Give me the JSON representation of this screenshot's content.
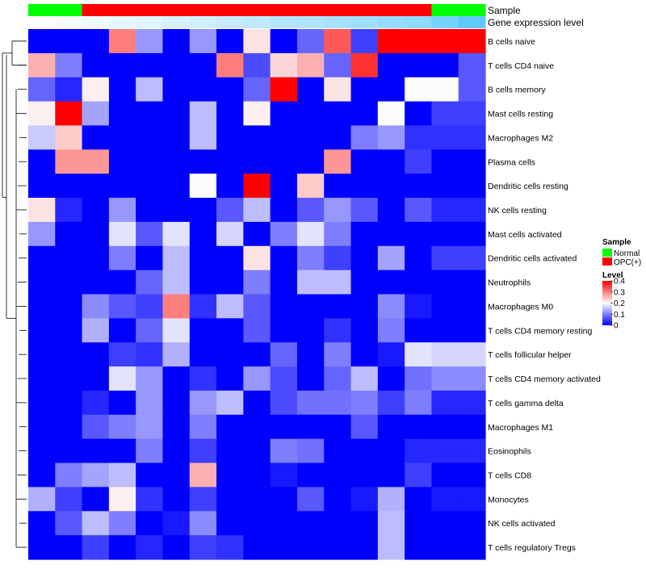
{
  "chart_data": {
    "type": "heatmap",
    "annotation_tracks": [
      "Sample",
      "Gene expression level"
    ],
    "sample_annotation": [
      "Normal",
      "Normal",
      "OPC(+)",
      "OPC(+)",
      "OPC(+)",
      "OPC(+)",
      "OPC(+)",
      "OPC(+)",
      "OPC(+)",
      "OPC(+)",
      "OPC(+)",
      "OPC(+)",
      "OPC(+)",
      "OPC(+)",
      "OPC(+)",
      "Normal",
      "Normal"
    ],
    "expression_annotation": [
      0.0,
      0.05,
      0.1,
      0.15,
      0.2,
      0.25,
      0.3,
      0.35,
      0.4,
      0.45,
      0.5,
      0.55,
      0.6,
      0.65,
      0.7,
      0.85,
      1.0
    ],
    "rows": [
      "B cells naive",
      "T cells CD4 naive",
      "B cells memory",
      "Mast cells resting",
      "Macrophages M2",
      "Plasma cells",
      "Dendritic cells resting",
      "NK cells resting",
      "Mast cells activated",
      "Dendritic cells activated",
      "Neutrophils",
      "Macrophages M0",
      "T cells CD4 memory resting",
      "T cells follicular helper",
      "T cells CD4 memory activated",
      "T cells gamma delta",
      "Macrophages M1",
      "Eosinophils",
      "T cells CD8",
      "Monocytes",
      "NK cells activated",
      "T cells regulatory  Tregs"
    ],
    "values": [
      [
        0,
        0,
        0,
        0.3,
        0.12,
        0,
        0.12,
        0,
        0.22,
        0,
        0.08,
        0.33,
        0.05,
        0.4,
        0.4,
        0.4,
        0.4
      ],
      [
        0.26,
        0.1,
        0,
        0,
        0,
        0,
        0,
        0.3,
        0.06,
        0.23,
        0.26,
        0.08,
        0.36,
        0,
        0,
        0,
        0.07
      ],
      [
        0.08,
        0.03,
        0.21,
        0,
        0.15,
        0,
        0,
        0,
        0.08,
        0.4,
        0,
        0.22,
        0,
        0,
        0.2,
        0.2,
        0.07
      ],
      [
        0.21,
        0.4,
        0.13,
        0,
        0,
        0,
        0.15,
        0,
        0.21,
        0,
        0,
        0,
        0,
        0.2,
        0,
        0.05,
        0.05
      ],
      [
        0.16,
        0.24,
        0,
        0,
        0,
        0,
        0.15,
        0,
        0,
        0,
        0,
        0,
        0.1,
        0.12,
        0.04,
        0.04,
        0.04
      ],
      [
        0,
        0.28,
        0.28,
        0,
        0,
        0,
        0,
        0,
        0,
        0,
        0,
        0.28,
        0,
        0,
        0.05,
        0,
        0
      ],
      [
        0,
        0,
        0,
        0,
        0,
        0,
        0.2,
        0,
        0.4,
        0,
        0.24,
        0,
        0,
        0,
        0,
        0,
        0
      ],
      [
        0.22,
        0.03,
        0,
        0.12,
        0,
        0,
        0,
        0.07,
        0.15,
        0,
        0.07,
        0.12,
        0.07,
        0,
        0.07,
        0.03,
        0.03
      ],
      [
        0.12,
        0,
        0,
        0.18,
        0.07,
        0.18,
        0,
        0.17,
        0,
        0.1,
        0.18,
        0.1,
        0,
        0,
        0,
        0,
        0
      ],
      [
        0,
        0,
        0,
        0.1,
        0,
        0.15,
        0,
        0,
        0.22,
        0,
        0.1,
        0.05,
        0,
        0.13,
        0,
        0.05,
        0.05
      ],
      [
        0,
        0,
        0,
        0,
        0.08,
        0.15,
        0,
        0,
        0.1,
        0,
        0.15,
        0.15,
        0,
        0,
        0,
        0,
        0
      ],
      [
        0,
        0,
        0.11,
        0.07,
        0.05,
        0.3,
        0.04,
        0.15,
        0.07,
        0,
        0,
        0,
        0,
        0.11,
        0.02,
        0,
        0
      ],
      [
        0,
        0,
        0.14,
        0,
        0.08,
        0.18,
        0,
        0,
        0.07,
        0,
        0,
        0.04,
        0,
        0.1,
        0,
        0,
        0
      ],
      [
        0,
        0,
        0,
        0.05,
        0.04,
        0.14,
        0,
        0,
        0,
        0.08,
        0,
        0.1,
        0,
        0.02,
        0.18,
        0.17,
        0.17
      ],
      [
        0,
        0,
        0,
        0.18,
        0.12,
        0,
        0.04,
        0,
        0.12,
        0.06,
        0,
        0.08,
        0.15,
        0,
        0.09,
        0.11,
        0.11
      ],
      [
        0,
        0,
        0.03,
        0,
        0.12,
        0,
        0.12,
        0.15,
        0,
        0.06,
        0.09,
        0.09,
        0.1,
        0.05,
        0.1,
        0.03,
        0.03
      ],
      [
        0,
        0,
        0.07,
        0.1,
        0.12,
        0,
        0.1,
        0,
        0,
        0,
        0,
        0,
        0.07,
        0,
        0,
        0,
        0
      ],
      [
        0,
        0,
        0,
        0,
        0.1,
        0,
        0.05,
        0,
        0,
        0.1,
        0.09,
        0,
        0,
        0,
        0.03,
        0.03,
        0.03
      ],
      [
        0,
        0.1,
        0.13,
        0.15,
        0,
        0,
        0.26,
        0,
        0,
        0.02,
        0,
        0,
        0,
        0,
        0.05,
        0,
        0
      ],
      [
        0.14,
        0.05,
        0,
        0.21,
        0.04,
        0,
        0.05,
        0,
        0,
        0,
        0.07,
        0,
        0.02,
        0.14,
        0,
        0.02,
        0.02
      ],
      [
        0,
        0.07,
        0.15,
        0.1,
        0,
        0.02,
        0.11,
        0,
        0,
        0,
        0,
        0,
        0,
        0.15,
        0,
        0,
        0
      ],
      [
        0,
        0,
        0.05,
        0,
        0.03,
        0,
        0.05,
        0.04,
        0,
        0,
        0,
        0,
        0,
        0.15,
        0,
        0,
        0
      ]
    ],
    "color_scale": {
      "stops": [
        {
          "value": 0,
          "color": "#0000ff"
        },
        {
          "value": 0.2,
          "color": "#fcfcfc"
        },
        {
          "value": 0.4,
          "color": "#ff0000"
        }
      ]
    },
    "legend": {
      "sample": {
        "title": "Sample",
        "entries": [
          {
            "label": "Normal",
            "color": "#00ff00"
          },
          {
            "label": "OPC(+)",
            "color": "#ff0000"
          }
        ]
      },
      "level": {
        "title": "Level",
        "ticks": [
          "0.4",
          "0.3",
          "0.2",
          "0.1",
          "0"
        ]
      }
    },
    "expression_colors": {
      "low": "#ffffff",
      "high": "#60c8ff"
    },
    "row_dendrogram": true,
    "legend_position": "right"
  }
}
